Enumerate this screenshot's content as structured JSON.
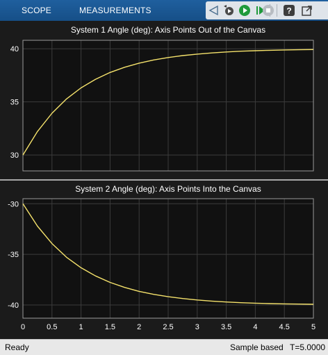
{
  "toolbar": {
    "tabs": [
      "SCOPE",
      "MEASUREMENTS"
    ],
    "icons": [
      "navigate-back-icon",
      "step-back-icon",
      "run-icon",
      "step-forward-icon",
      "stop-icon",
      "help-icon",
      "undock-icon"
    ]
  },
  "status": {
    "ready": "Ready",
    "mode": "Sample based",
    "time": "T=5.0000"
  },
  "colors": {
    "accent": "#1a5a96",
    "plot_bg": "#111111",
    "line": "#f6e36c",
    "grid": "#3c3c3c"
  },
  "chart_data": [
    {
      "type": "line",
      "title": "System 1 Angle (deg): Axis Points Out of the Canvas",
      "x": [
        0,
        0.25,
        0.5,
        0.75,
        1,
        1.25,
        1.5,
        1.75,
        2,
        2.25,
        2.5,
        2.75,
        3,
        3.25,
        3.5,
        3.75,
        4,
        4.25,
        4.5,
        4.75,
        5
      ],
      "series": [
        {
          "values": [
            30,
            32.21,
            33.93,
            35.28,
            36.32,
            37.13,
            37.77,
            38.26,
            38.65,
            38.95,
            39.18,
            39.36,
            39.5,
            39.61,
            39.7,
            39.77,
            39.82,
            39.86,
            39.89,
            39.91,
            39.93
          ]
        }
      ],
      "xlim": [
        0,
        5
      ],
      "ylim": [
        28.5,
        40.8
      ],
      "yticks": [
        30,
        35,
        40
      ],
      "grid": true
    },
    {
      "type": "line",
      "title": "System 2 Angle (deg): Axis Points Into the Canvas",
      "x": [
        0,
        0.25,
        0.5,
        0.75,
        1,
        1.25,
        1.5,
        1.75,
        2,
        2.25,
        2.5,
        2.75,
        3,
        3.25,
        3.5,
        3.75,
        4,
        4.25,
        4.5,
        4.75,
        5
      ],
      "series": [
        {
          "values": [
            -30,
            -32.21,
            -33.93,
            -35.28,
            -36.32,
            -37.13,
            -37.77,
            -38.26,
            -38.65,
            -38.95,
            -39.18,
            -39.36,
            -39.5,
            -39.61,
            -39.7,
            -39.77,
            -39.82,
            -39.86,
            -39.89,
            -39.91,
            -39.93
          ]
        }
      ],
      "xlim": [
        0,
        5
      ],
      "ylim": [
        -41.3,
        -29.5
      ],
      "xticks": [
        0,
        0.5,
        1,
        1.5,
        2,
        2.5,
        3,
        3.5,
        4,
        4.5,
        5
      ],
      "yticks": [
        -30,
        -35,
        -40
      ],
      "grid": true
    }
  ]
}
